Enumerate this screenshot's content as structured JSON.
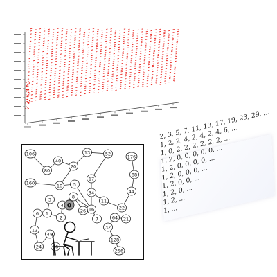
{
  "sequence_lines": [
    "2, 3, 5, 7, 11, 13, 17, 19, 23, 29, ...",
    "1, 2, 2, 4, 2, 4, 2, 4, 6, ...",
    "1, 0, 2, 2, 2, 2, 2, 2, ...",
    "1, 2, 0, 0, 0, 0, 0, ...",
    "1, 2, 0, 0, 0, 0, ...",
    "1, 2, 0, 0, 0, ...",
    "1, 2, 0, 0, ...",
    "1, 2, 0, ...",
    "1, 2, ...",
    "1, ..."
  ],
  "comic": {
    "center_label": "0",
    "nodes": [
      "106",
      "80",
      "40",
      "20",
      "13",
      "52",
      "176",
      "88",
      "44",
      "22",
      "11",
      "34",
      "17",
      "160",
      "10",
      "5",
      "16",
      "8",
      "4",
      "2",
      "1",
      "3",
      "6",
      "12",
      "24",
      "48",
      "96",
      "64",
      "32",
      "128",
      "256",
      "21",
      "7",
      "26"
    ]
  },
  "plot": {
    "point_color": "#e8211b"
  },
  "colors": {
    "border": "#111111",
    "axis": "#333333"
  }
}
